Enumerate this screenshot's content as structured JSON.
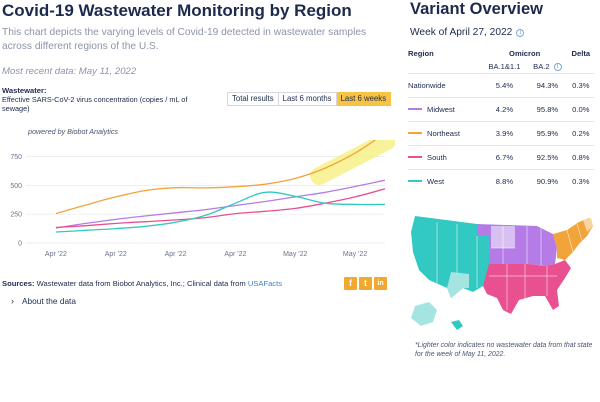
{
  "left": {
    "title": "Covid-19 Wastewater Monitoring by Region",
    "description": "This chart depicts the varying levels of Covid-19 detected in wastewater samples across different regions of the U.S.",
    "recent_data": "Most recent data: May 11, 2022",
    "wastewater_label": "Wastewater:",
    "wastewater_sub": "Effective SARS-CoV-2 virus concentration (copies / mL of sewage)",
    "buttons": [
      "Total results",
      "Last 6 months",
      "Last 6 weeks"
    ],
    "active_button": "Last 6 weeks",
    "powered_by": "powered by Biobot Analytics",
    "sources_label": "Sources:",
    "sources_text": "Wastewater data from Biobot Analytics, Inc.; Clinical data from",
    "sources_link": "USAFacts",
    "share_icons": [
      "f",
      "t",
      "in"
    ],
    "about": "About the data"
  },
  "chart_data": {
    "type": "line",
    "x": [
      "Apr '22",
      "Apr '22",
      "Apr '22",
      "Apr '22",
      "May '22",
      "May '22"
    ],
    "yticks": [
      0,
      250,
      500,
      750
    ],
    "ylim": [
      0,
      850
    ],
    "grid": true,
    "series": [
      {
        "name": "Northeast",
        "color": "#f2a33a",
        "x": [
          0,
          0.5,
          1,
          1.5,
          2,
          2.5,
          3,
          3.5,
          4,
          4.5,
          5,
          5.5
        ],
        "values": [
          255,
          330,
          400,
          455,
          480,
          478,
          488,
          510,
          560,
          650,
          780,
          960
        ]
      },
      {
        "name": "Midwest",
        "color": "#b57be6",
        "x": [
          0,
          0.5,
          1,
          1.5,
          2,
          2.5,
          3,
          3.5,
          4,
          4.5,
          5,
          5.5
        ],
        "values": [
          130,
          170,
          205,
          235,
          262,
          290,
          325,
          360,
          400,
          440,
          490,
          545
        ]
      },
      {
        "name": "South",
        "color": "#e9508f",
        "x": [
          0,
          0.5,
          1,
          1.5,
          2,
          2.5,
          3,
          3.5,
          4,
          4.5,
          5,
          5.5
        ],
        "values": [
          135,
          150,
          170,
          185,
          200,
          220,
          255,
          275,
          300,
          345,
          400,
          470
        ]
      },
      {
        "name": "West",
        "color": "#33c9c3",
        "x": [
          0,
          0.5,
          1,
          1.5,
          2,
          2.5,
          3,
          3.5,
          4,
          4.5,
          5,
          5.5
        ],
        "values": [
          95,
          110,
          125,
          145,
          180,
          240,
          345,
          440,
          405,
          345,
          335,
          335
        ]
      }
    ]
  },
  "right": {
    "title": "Variant Overview",
    "week": "Week of April 27, 2022",
    "headers": {
      "region": "Region",
      "omicron": "Omicron",
      "ba1": "BA.1&1.1",
      "ba2": "BA.2",
      "delta": "Delta"
    },
    "rows": [
      {
        "region": "Nationwide",
        "ba1": "5.4%",
        "ba2": "94.3%",
        "delta": "0.3%",
        "color": ""
      },
      {
        "region": "Midwest",
        "ba1": "4.2%",
        "ba2": "95.8%",
        "delta": "0.0%",
        "color": "#b57be6"
      },
      {
        "region": "Northeast",
        "ba1": "3.9%",
        "ba2": "95.9%",
        "delta": "0.2%",
        "color": "#f2a33a"
      },
      {
        "region": "South",
        "ba1": "6.7%",
        "ba2": "92.5%",
        "delta": "0.8%",
        "color": "#e9508f"
      },
      {
        "region": "West",
        "ba1": "8.8%",
        "ba2": "90.9%",
        "delta": "0.3%",
        "color": "#33c9c3"
      }
    ],
    "map_colors": {
      "west": "#33c9c3",
      "midwest": "#b57be6",
      "northeast": "#f2a33a",
      "south": "#e9508f",
      "no_data_west": "#a4e4e1",
      "no_data_midwest": "#d9c0f3",
      "no_data_northeast": "#f8d49e"
    },
    "note": "*Lighter color indicates no wastewater data from that state for the week of May 11, 2022."
  }
}
